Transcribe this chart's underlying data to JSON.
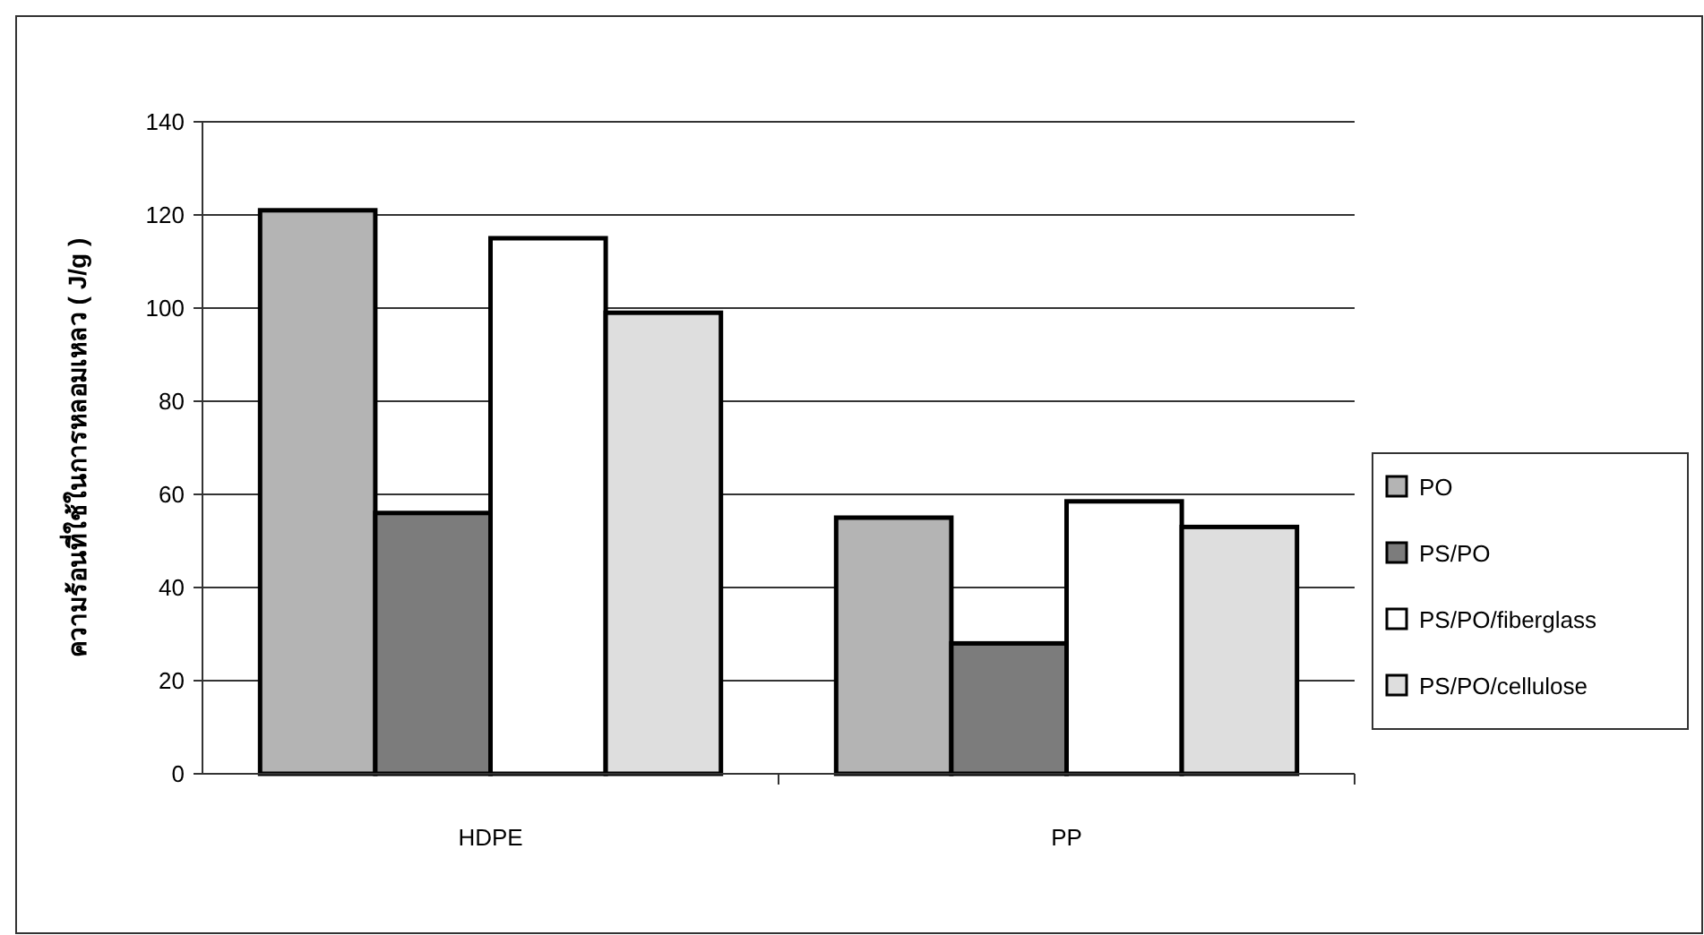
{
  "chart_data": {
    "type": "bar",
    "ylabel": "ความร้อนที่ใช้ในการหลอมเหลว ( J/g )",
    "categories": [
      "HDPE",
      "PP"
    ],
    "series": [
      {
        "name": "PO",
        "color": "#b4b4b4",
        "values": [
          121,
          55
        ]
      },
      {
        "name": "PS/PO",
        "color": "#7c7c7c",
        "values": [
          56,
          28
        ]
      },
      {
        "name": "PS/PO/fiberglass",
        "color": "#ffffff",
        "values": [
          115,
          58.5
        ]
      },
      {
        "name": "PS/PO/cellulose",
        "color": "#dedede",
        "values": [
          99,
          53
        ]
      }
    ],
    "ylim": [
      0,
      140
    ],
    "yticks": [
      0,
      20,
      40,
      60,
      80,
      100,
      120,
      140
    ],
    "grid": "y",
    "legend": "right"
  }
}
